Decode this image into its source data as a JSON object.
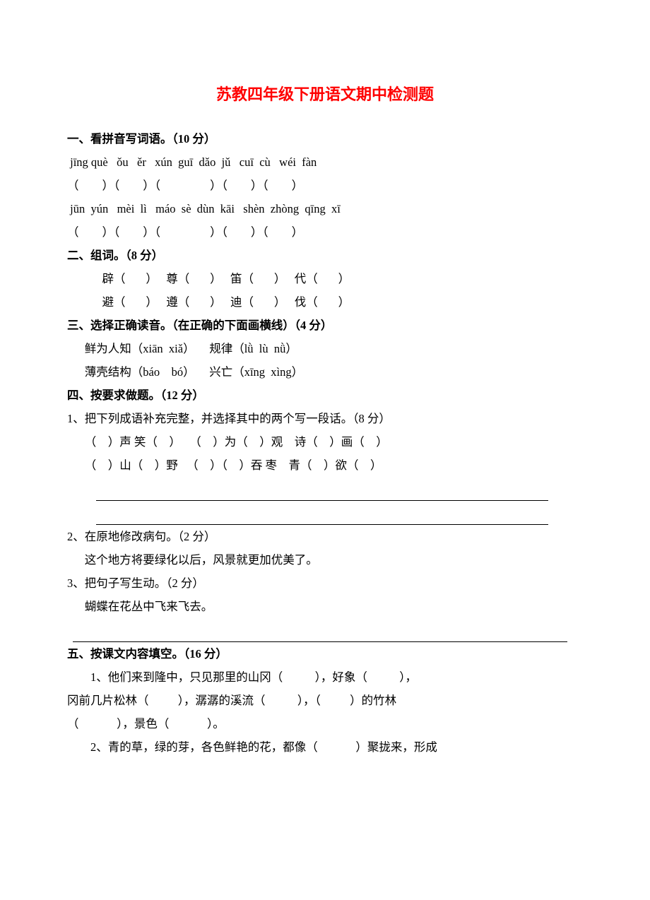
{
  "title": "苏教四年级下册语文期中检测题",
  "s1": {
    "header": "一、看拼音写词语。（10 分）",
    "pinyin1": " jīng què   ǒu   ěr   xún  guī  dǎo  jǔ   cuī  cù   wéi  fàn",
    "blanks1": "（        ）（        ）（                 ）（        ）（        ）",
    "pinyin2": " jūn  yún   mèi  lì   máo  sè  dùn  kāi   shèn  zhòng  qīng  xī",
    "blanks2": "（        ）（        ）（                 ）（        ）（        ）"
  },
  "s2": {
    "header": "二、组词。（8 分）",
    "line1": "辟（       ）   尊（       ）   笛（       ）   代（       ）",
    "line2": "避（       ）   遵（       ）   迪（       ）   伐（       ）"
  },
  "s3": {
    "header": "三、选择正确读音。（在正确的下面画横线）（4 分）",
    "line1": "鲜为人知（xiān  xiǎ）     规律（lǜ  lù  nǜ）",
    "line2": "薄壳结构（báo    bó）     兴亡（xīng  xìng）"
  },
  "s4": {
    "header": "四、按要求做题。（12 分）",
    "q1": "1、把下列成语补充完整，并选择其中的两个写一段话。（8 分）",
    "q1l1": "（    ）声 笑（    ）   （    ）为（    ）观    诗（    ）画（    ）",
    "q1l2": "（    ）山（    ）野   （    ）（    ）吞 枣    青（    ）欲（    ）",
    "q2": "2、在原地修改病句。（2 分）",
    "q2l1": "这个地方将要绿化以后，风景就更加优美了。",
    "q3": "3、把句子写生动。（2 分）",
    "q3l1": "蝴蝶在花丛中飞来飞去。"
  },
  "s5": {
    "header": "五、按课文内容填空。（16 分）",
    "q1": "        1、他们来到隆中，只见那里的山冈（           ），好象（           ），",
    "q1b": "冈前几片松林（          ），潺潺的溪流（           ），（          ）的竹林",
    "q1c": "（             ），景色（             ）。",
    "q2": "        2、青的草，绿的芽，各色鲜艳的花，都像（             ）聚拢来，形成"
  }
}
